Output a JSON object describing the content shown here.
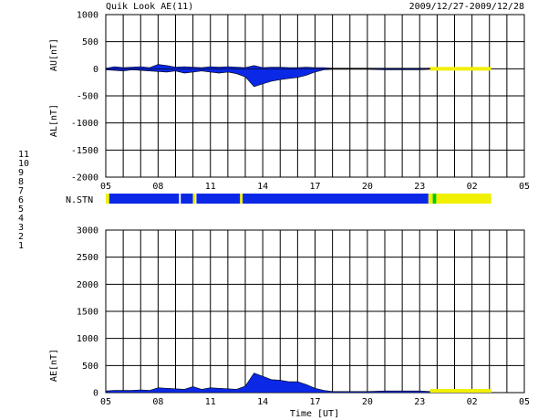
{
  "header": {
    "title": "Quik Look AE(11)",
    "date_range": "2009/12/27-2009/12/28"
  },
  "station_legend": [
    {
      "label": "11",
      "color": "#00e5e5"
    },
    {
      "label": "10",
      "color": "#ff00ff"
    },
    {
      "label": "9",
      "color": "#0000c8"
    },
    {
      "label": "8",
      "color": "#ffff66"
    },
    {
      "label": "7",
      "color": "#00c800"
    },
    {
      "label": "6",
      "color": "#ff0000"
    },
    {
      "label": "5",
      "color": "#bbbbbb"
    },
    {
      "label": "4",
      "color": "#bbbbbb"
    },
    {
      "label": "3",
      "color": "#20a0a0"
    },
    {
      "label": "2",
      "color": "#a000a0"
    },
    {
      "label": "1",
      "color": "#0000c8"
    }
  ],
  "labels": {
    "au": "AU[nT]",
    "al": "AL[nT]",
    "nstn": "N.STN",
    "ae": "AE[nT]",
    "xlabel": "Time [UT]"
  },
  "colors": {
    "blue": "#0a28e6",
    "yellow": "#f0f000",
    "green": "#00c800"
  },
  "chart_data": [
    {
      "type": "area",
      "name": "AU/AL",
      "x_ticks": [
        "05",
        "08",
        "11",
        "14",
        "17",
        "20",
        "23",
        "02",
        "05"
      ],
      "x_range_hours": [
        5,
        29
      ],
      "y_ticks": [
        "1000",
        "500",
        "0",
        "-500",
        "-1000",
        "-1500",
        "-2000"
      ],
      "ylim": [
        -2000,
        1000
      ],
      "grid": true,
      "au_series": {
        "x": [
          5.0,
          5.5,
          6.0,
          6.5,
          7.0,
          7.5,
          8.0,
          8.5,
          9.0,
          9.5,
          10.0,
          10.5,
          11.0,
          11.5,
          12.0,
          12.5,
          13.0,
          13.5,
          14.0,
          14.5,
          15.0,
          15.5,
          16.0,
          16.5,
          17.0,
          17.5,
          18.0,
          19.0,
          20.0,
          21.0,
          22.0,
          23.0,
          23.6,
          24.0,
          25.0,
          26.0,
          27.0
        ],
        "values": [
          10,
          40,
          20,
          30,
          40,
          20,
          80,
          60,
          30,
          40,
          30,
          20,
          40,
          30,
          40,
          30,
          20,
          60,
          20,
          30,
          30,
          20,
          20,
          30,
          20,
          20,
          10,
          10,
          10,
          10,
          10,
          10,
          10,
          10,
          10,
          10,
          10
        ]
      },
      "al_series": {
        "x": [
          5.0,
          5.5,
          6.0,
          6.5,
          7.0,
          7.5,
          8.0,
          8.5,
          9.0,
          9.5,
          10.0,
          10.5,
          11.0,
          11.5,
          12.0,
          12.5,
          13.0,
          13.5,
          14.0,
          14.5,
          15.0,
          15.5,
          16.0,
          16.5,
          17.0,
          17.5,
          18.0,
          19.0,
          20.0,
          21.0,
          22.0,
          23.0,
          23.6,
          24.0,
          25.0,
          26.0,
          27.0
        ],
        "values": [
          -20,
          -30,
          -40,
          -20,
          -30,
          -40,
          -50,
          -60,
          -40,
          -80,
          -60,
          -40,
          -60,
          -80,
          -60,
          -90,
          -150,
          -330,
          -280,
          -230,
          -200,
          -180,
          -160,
          -120,
          -60,
          -20,
          -10,
          -10,
          -10,
          -20,
          -20,
          -20,
          -10,
          -10,
          -10,
          -10,
          -10
        ]
      },
      "quiet_segment_hours": [
        23.6,
        27.1
      ]
    },
    {
      "type": "bar",
      "name": "N.STN",
      "segments": [
        {
          "from": 5.0,
          "to": 5.2,
          "color": "yellow"
        },
        {
          "from": 5.2,
          "to": 9.2,
          "color": "blue"
        },
        {
          "from": 9.3,
          "to": 10.0,
          "color": "blue"
        },
        {
          "from": 10.0,
          "to": 10.15,
          "color": "yellow"
        },
        {
          "from": 10.2,
          "to": 12.7,
          "color": "blue"
        },
        {
          "from": 12.7,
          "to": 12.85,
          "color": "yellow"
        },
        {
          "from": 12.85,
          "to": 23.5,
          "color": "blue"
        },
        {
          "from": 23.5,
          "to": 23.75,
          "color": "yellow"
        },
        {
          "from": 23.75,
          "to": 23.95,
          "color": "green"
        },
        {
          "from": 23.95,
          "to": 27.1,
          "color": "yellow"
        }
      ]
    },
    {
      "type": "area",
      "name": "AE",
      "x_ticks": [
        "05",
        "08",
        "11",
        "14",
        "17",
        "20",
        "23",
        "02",
        "05"
      ],
      "x_range_hours": [
        5,
        29
      ],
      "y_ticks": [
        "3000",
        "2500",
        "2000",
        "1500",
        "1000",
        "500",
        "0"
      ],
      "ylim": [
        0,
        3000
      ],
      "grid": true,
      "ae_series": {
        "x": [
          5.0,
          5.5,
          6.0,
          6.5,
          7.0,
          7.5,
          8.0,
          8.5,
          9.0,
          9.5,
          10.0,
          10.5,
          11.0,
          11.5,
          12.0,
          12.5,
          13.0,
          13.5,
          14.0,
          14.5,
          15.0,
          15.5,
          16.0,
          16.5,
          17.0,
          17.5,
          18.0,
          19.0,
          20.0,
          21.0,
          22.0,
          23.0,
          23.6,
          24.0,
          25.0,
          26.0,
          27.0
        ],
        "values": [
          30,
          40,
          40,
          40,
          50,
          40,
          90,
          80,
          70,
          60,
          110,
          60,
          90,
          80,
          70,
          60,
          120,
          360,
          300,
          240,
          230,
          200,
          200,
          150,
          80,
          40,
          20,
          20,
          20,
          30,
          30,
          30,
          20,
          20,
          20,
          20,
          20
        ]
      },
      "quiet_segment_hours": [
        23.6,
        27.1
      ]
    }
  ]
}
